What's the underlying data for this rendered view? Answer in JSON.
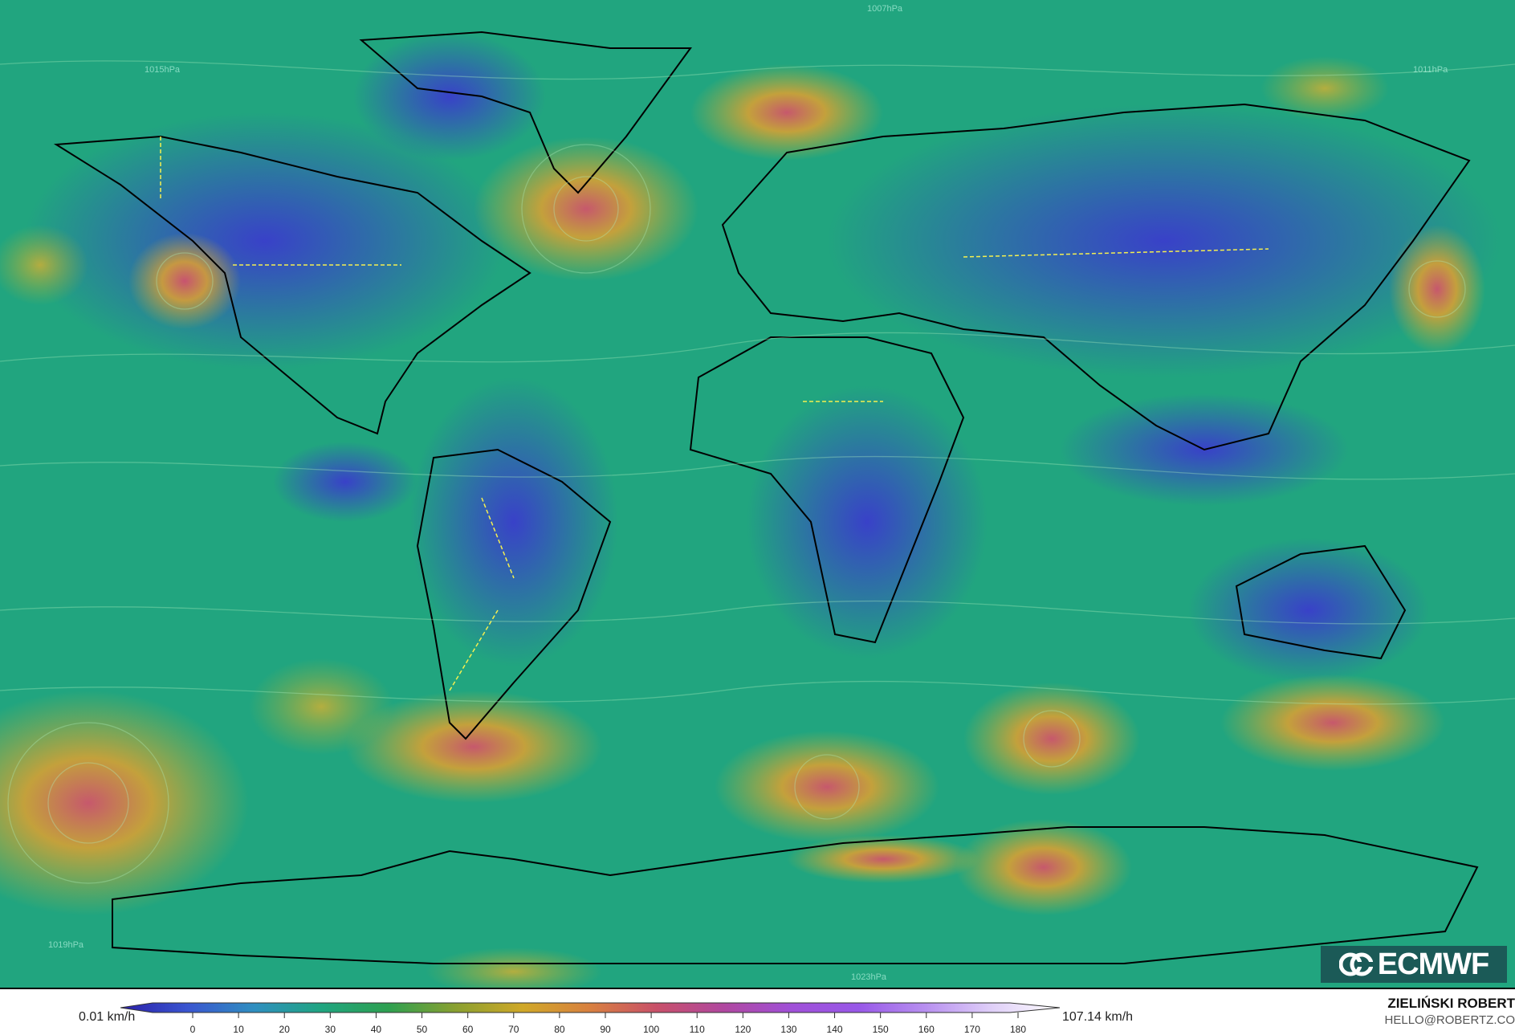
{
  "map": {
    "colors": {
      "ocean_base": "#21a57f",
      "land_low": "#3b3fd0",
      "jet": "#e0a030",
      "core": "#d9506a",
      "coastline": "#000000",
      "borders": "#f5f050"
    },
    "isobar_labels": [
      "1015hPa",
      "1019hPa",
      "1023hPa",
      "1007hPa",
      "1011hPa"
    ]
  },
  "logo": {
    "text": "ECMWF"
  },
  "legend": {
    "min_label": "0.01 km/h",
    "max_label": "107.14 km/h",
    "ticks": [
      "0",
      "10",
      "20",
      "30",
      "40",
      "50",
      "60",
      "70",
      "80",
      "90",
      "100",
      "110",
      "120",
      "130",
      "140",
      "150",
      "160",
      "170",
      "180"
    ],
    "colorscale": [
      "#2a1fa8",
      "#3a55d0",
      "#2f8fc0",
      "#1fa580",
      "#2ea050",
      "#8aa030",
      "#d0a828",
      "#d88040",
      "#c8506a",
      "#b048a0",
      "#a050d8",
      "#9858e8",
      "#b890f0",
      "#e0d0f8",
      "#ffffff"
    ]
  },
  "credit": {
    "author": "ZIELIŃSKI ROBERT",
    "email": "HELLO@ROBERTZ.CO"
  }
}
